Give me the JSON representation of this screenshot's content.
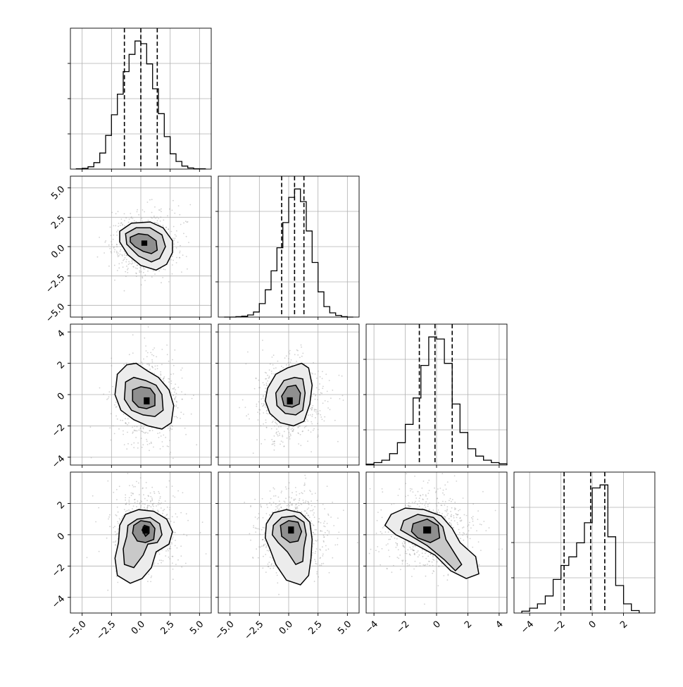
{
  "chart_data": {
    "type": "corner",
    "title": "",
    "ndim": 4,
    "grid": true,
    "parameters": [
      {
        "index": 0,
        "xlabel": "",
        "range": [
          -6,
          6
        ],
        "ticks": [
          -5.0,
          -2.5,
          0.0,
          2.5,
          5.0
        ],
        "tick_labels": [
          "−5.0",
          "−2.5",
          "0.0",
          "2.5",
          "5.0"
        ],
        "quantiles": [
          -1.4,
          0.0,
          1.4
        ],
        "histogram": {
          "bin_edges": [
            -5.5,
            -5.0,
            -4.5,
            -4.0,
            -3.5,
            -3.0,
            -2.5,
            -2.0,
            -1.5,
            -1.0,
            -0.5,
            0.0,
            0.5,
            1.0,
            1.5,
            2.0,
            2.5,
            3.0,
            3.5,
            4.0,
            4.5,
            5.0,
            5.5
          ],
          "counts": [
            1,
            2,
            6,
            17,
            42,
            88,
            142,
            196,
            255,
            300,
            335,
            328,
            275,
            210,
            145,
            85,
            40,
            20,
            8,
            3,
            1,
            1
          ]
        }
      },
      {
        "index": 1,
        "xlabel": "",
        "range": [
          -6,
          6
        ],
        "ticks": [
          -5.0,
          -2.5,
          0.0,
          2.5,
          5.0
        ],
        "tick_labels": [
          "−5.0",
          "−2.5",
          "0.0",
          "2.5",
          "5.0"
        ],
        "quantiles": [
          -0.6,
          0.5,
          1.3
        ],
        "histogram": {
          "bin_edges": [
            -5.5,
            -5.0,
            -4.5,
            -4.0,
            -3.5,
            -3.0,
            -2.5,
            -2.0,
            -1.5,
            -1.0,
            -0.5,
            0.0,
            0.5,
            1.0,
            1.5,
            2.0,
            2.5,
            3.0,
            3.5,
            4.0,
            4.5,
            5.0,
            5.5
          ],
          "counts": [
            0,
            0,
            1,
            2,
            5,
            12,
            32,
            65,
            110,
            165,
            225,
            285,
            305,
            275,
            205,
            130,
            60,
            25,
            10,
            4,
            1,
            0
          ]
        }
      },
      {
        "index": 2,
        "xlabel": "",
        "range": [
          -4.5,
          4.5
        ],
        "ticks": [
          -4,
          -2,
          0,
          2,
          4
        ],
        "tick_labels": [
          "−4",
          "−2",
          "0",
          "2",
          "4"
        ],
        "quantiles": [
          -1.1,
          -0.1,
          1.0
        ],
        "histogram": {
          "bin_edges": [
            -4.5,
            -4.0,
            -3.5,
            -3.0,
            -2.5,
            -2.0,
            -1.5,
            -1.0,
            -0.5,
            0.0,
            0.5,
            1.0,
            1.5,
            2.0,
            2.5,
            3.0,
            3.5,
            4.0,
            4.5
          ],
          "counts": [
            2,
            6,
            12,
            28,
            55,
            100,
            165,
            245,
            315,
            310,
            250,
            150,
            80,
            40,
            22,
            12,
            6,
            3
          ]
        }
      },
      {
        "index": 3,
        "xlabel": "",
        "range": [
          -5,
          4
        ],
        "ticks": [
          -4,
          -2,
          0,
          2
        ],
        "tick_labels": [
          "−4",
          "−2",
          "0",
          "2"
        ],
        "quantiles": [
          -1.8,
          -0.1,
          0.8
        ],
        "histogram": {
          "bin_edges": [
            -4.5,
            -4.0,
            -3.5,
            -3.0,
            -2.5,
            -2.0,
            -1.5,
            -1.0,
            -0.5,
            0.0,
            0.5,
            1.0,
            1.5,
            2.0,
            2.5,
            3.0
          ],
          "counts": [
            3,
            8,
            15,
            28,
            55,
            78,
            92,
            115,
            148,
            205,
            210,
            125,
            45,
            15,
            4
          ]
        }
      }
    ],
    "panels_2d": [
      {
        "x_param": 0,
        "y_param": 1,
        "center": [
          0.3,
          0.3
        ],
        "density_peak": [
          0.3,
          0.3
        ],
        "contours": [
          [
            [
              -1.8,
              1.3
            ],
            [
              -0.8,
              2.0
            ],
            [
              0.8,
              2.1
            ],
            [
              1.9,
              1.6
            ],
            [
              2.7,
              0.5
            ],
            [
              2.7,
              -0.5
            ],
            [
              2.2,
              -1.5
            ],
            [
              1.3,
              -2.0
            ],
            [
              0.0,
              -1.6
            ],
            [
              -1.1,
              -0.7
            ],
            [
              -1.8,
              0.4
            ]
          ],
          [
            [
              -1.3,
              1.1
            ],
            [
              -0.4,
              1.6
            ],
            [
              0.8,
              1.6
            ],
            [
              1.8,
              1.0
            ],
            [
              2.1,
              0.0
            ],
            [
              1.6,
              -1.0
            ],
            [
              0.9,
              -1.3
            ],
            [
              -0.2,
              -0.8
            ],
            [
              -1.2,
              0.2
            ]
          ],
          [
            [
              -0.9,
              0.8
            ],
            [
              -0.2,
              1.1
            ],
            [
              0.6,
              1.0
            ],
            [
              1.3,
              0.5
            ],
            [
              1.4,
              -0.3
            ],
            [
              0.9,
              -0.6
            ],
            [
              0.2,
              -0.4
            ],
            [
              -0.5,
              0.0
            ],
            [
              -0.9,
              0.4
            ]
          ]
        ]
      },
      {
        "x_param": 0,
        "y_param": 2,
        "center": [
          0.5,
          -0.4
        ],
        "density_peak": [
          0.5,
          -0.4
        ],
        "contours": [
          [
            [
              -2.0,
              1.3
            ],
            [
              -1.2,
              1.9
            ],
            [
              -0.4,
              2.0
            ],
            [
              0.6,
              1.5
            ],
            [
              1.5,
              1.1
            ],
            [
              2.4,
              0.3
            ],
            [
              2.8,
              -0.7
            ],
            [
              2.6,
              -1.8
            ],
            [
              1.8,
              -2.2
            ],
            [
              0.6,
              -2.0
            ],
            [
              -0.6,
              -1.6
            ],
            [
              -1.7,
              -1.0
            ],
            [
              -2.2,
              0.0
            ]
          ],
          [
            [
              -1.3,
              0.8
            ],
            [
              -0.6,
              1.1
            ],
            [
              0.4,
              0.9
            ],
            [
              1.3,
              0.6
            ],
            [
              1.8,
              0.0
            ],
            [
              1.9,
              -1.0
            ],
            [
              1.2,
              -1.4
            ],
            [
              0.2,
              -1.3
            ],
            [
              -0.8,
              -1.0
            ],
            [
              -1.4,
              -0.3
            ]
          ],
          [
            [
              -0.7,
              0.3
            ],
            [
              0.0,
              0.5
            ],
            [
              0.8,
              0.4
            ],
            [
              1.2,
              0.0
            ],
            [
              1.2,
              -0.7
            ],
            [
              0.5,
              -0.9
            ],
            [
              -0.2,
              -0.8
            ],
            [
              -0.7,
              -0.4
            ]
          ]
        ]
      },
      {
        "x_param": 1,
        "y_param": 2,
        "center": [
          0.1,
          -0.3
        ],
        "density_peak": [
          0.1,
          -0.4
        ],
        "contours": [
          [
            [
              -1.8,
              0.4
            ],
            [
              -1.1,
              1.3
            ],
            [
              -0.1,
              1.7
            ],
            [
              1.1,
              2.0
            ],
            [
              1.7,
              1.7
            ],
            [
              2.0,
              0.6
            ],
            [
              1.8,
              -0.6
            ],
            [
              1.3,
              -1.7
            ],
            [
              0.4,
              -2.0
            ],
            [
              -0.7,
              -1.8
            ],
            [
              -1.6,
              -1.2
            ],
            [
              -2.0,
              -0.4
            ]
          ],
          [
            [
              -1.1,
              0.1
            ],
            [
              -0.4,
              0.9
            ],
            [
              0.5,
              1.1
            ],
            [
              1.2,
              1.0
            ],
            [
              1.4,
              0.1
            ],
            [
              1.2,
              -1.0
            ],
            [
              0.6,
              -1.3
            ],
            [
              -0.3,
              -1.2
            ],
            [
              -1.0,
              -0.7
            ]
          ],
          [
            [
              -0.6,
              -0.1
            ],
            [
              -0.1,
              0.5
            ],
            [
              0.6,
              0.6
            ],
            [
              1.0,
              0.1
            ],
            [
              0.9,
              -0.6
            ],
            [
              0.3,
              -0.8
            ],
            [
              -0.4,
              -0.7
            ]
          ]
        ]
      },
      {
        "x_param": 0,
        "y_param": 3,
        "center": [
          0.4,
          0.3
        ],
        "density_peak": [
          0.4,
          0.3
        ],
        "contours": [
          [
            [
              -1.8,
              0.6
            ],
            [
              -1.3,
              1.3
            ],
            [
              -0.2,
              1.6
            ],
            [
              1.1,
              1.5
            ],
            [
              2.2,
              1.0
            ],
            [
              2.7,
              0.2
            ],
            [
              2.4,
              -0.6
            ],
            [
              1.3,
              -1.1
            ],
            [
              0.9,
              -2.1
            ],
            [
              0.1,
              -2.8
            ],
            [
              -0.9,
              -3.1
            ],
            [
              -2.0,
              -2.6
            ],
            [
              -2.2,
              -1.5
            ],
            [
              -1.9,
              -0.5
            ]
          ],
          [
            [
              -1.1,
              0.6
            ],
            [
              -0.3,
              1.0
            ],
            [
              0.8,
              1.1
            ],
            [
              1.6,
              0.7
            ],
            [
              1.8,
              0.0
            ],
            [
              1.4,
              -0.5
            ],
            [
              0.6,
              -0.6
            ],
            [
              0.2,
              -1.3
            ],
            [
              -0.6,
              -2.1
            ],
            [
              -1.4,
              -1.9
            ],
            [
              -1.5,
              -0.9
            ],
            [
              -1.2,
              -0.1
            ]
          ],
          [
            [
              -0.6,
              0.6
            ],
            [
              0.0,
              0.9
            ],
            [
              0.8,
              0.8
            ],
            [
              1.2,
              0.4
            ],
            [
              1.1,
              -0.3
            ],
            [
              0.4,
              -0.5
            ],
            [
              -0.3,
              -0.4
            ],
            [
              -0.7,
              0.1
            ]
          ],
          [
            [
              0.1,
              0.3
            ],
            [
              0.3,
              0.6
            ],
            [
              0.7,
              0.5
            ],
            [
              0.7,
              0.1
            ],
            [
              0.4,
              -0.1
            ]
          ]
        ]
      },
      {
        "x_param": 1,
        "y_param": 3,
        "center": [
          0.2,
          0.2
        ],
        "density_peak": [
          0.2,
          0.3
        ],
        "contours": [
          [
            [
              -1.9,
              0.7
            ],
            [
              -1.3,
              1.4
            ],
            [
              -0.2,
              1.6
            ],
            [
              1.0,
              1.4
            ],
            [
              1.8,
              0.8
            ],
            [
              2.0,
              -0.3
            ],
            [
              1.9,
              -1.5
            ],
            [
              1.7,
              -2.6
            ],
            [
              1.0,
              -3.2
            ],
            [
              -0.2,
              -2.9
            ],
            [
              -1.1,
              -1.9
            ],
            [
              -1.6,
              -0.9
            ],
            [
              -2.0,
              -0.2
            ]
          ],
          [
            [
              -1.3,
              0.6
            ],
            [
              -0.6,
              1.1
            ],
            [
              0.5,
              1.2
            ],
            [
              1.3,
              0.8
            ],
            [
              1.5,
              0.0
            ],
            [
              1.3,
              -0.8
            ],
            [
              1.2,
              -1.7
            ],
            [
              0.6,
              -1.9
            ],
            [
              -0.1,
              -1.1
            ],
            [
              -0.9,
              -0.5
            ],
            [
              -1.4,
              0.0
            ]
          ],
          [
            [
              -0.7,
              0.6
            ],
            [
              0.0,
              0.9
            ],
            [
              0.8,
              0.8
            ],
            [
              1.1,
              0.2
            ],
            [
              0.8,
              -0.4
            ],
            [
              0.1,
              -0.5
            ],
            [
              -0.6,
              -0.1
            ]
          ]
        ]
      },
      {
        "x_param": 2,
        "y_param": 3,
        "center": [
          -0.5,
          0.3
        ],
        "density_peak": [
          -0.6,
          0.3
        ],
        "contours": [
          [
            [
              -2.9,
              1.3
            ],
            [
              -2.0,
              1.7
            ],
            [
              -0.8,
              1.6
            ],
            [
              0.3,
              1.2
            ],
            [
              1.0,
              0.4
            ],
            [
              1.5,
              -0.5
            ],
            [
              2.5,
              -1.4
            ],
            [
              2.7,
              -2.5
            ],
            [
              1.9,
              -2.8
            ],
            [
              0.9,
              -2.3
            ],
            [
              -0.1,
              -1.3
            ],
            [
              -1.4,
              -0.6
            ],
            [
              -2.6,
              0.0
            ],
            [
              -3.3,
              0.6
            ]
          ],
          [
            [
              -2.1,
              0.9
            ],
            [
              -1.2,
              1.3
            ],
            [
              -0.2,
              1.1
            ],
            [
              0.4,
              0.5
            ],
            [
              0.6,
              -0.3
            ],
            [
              1.1,
              -1.1
            ],
            [
              1.6,
              -1.9
            ],
            [
              1.2,
              -2.3
            ],
            [
              0.5,
              -1.6
            ],
            [
              -0.6,
              -0.7
            ],
            [
              -1.6,
              -0.1
            ],
            [
              -2.3,
              0.3
            ]
          ],
          [
            [
              -1.5,
              0.7
            ],
            [
              -0.6,
              1.0
            ],
            [
              0.1,
              0.6
            ],
            [
              0.2,
              -0.2
            ],
            [
              -0.4,
              -0.5
            ],
            [
              -1.2,
              -0.2
            ],
            [
              -1.6,
              0.2
            ]
          ]
        ]
      }
    ]
  }
}
